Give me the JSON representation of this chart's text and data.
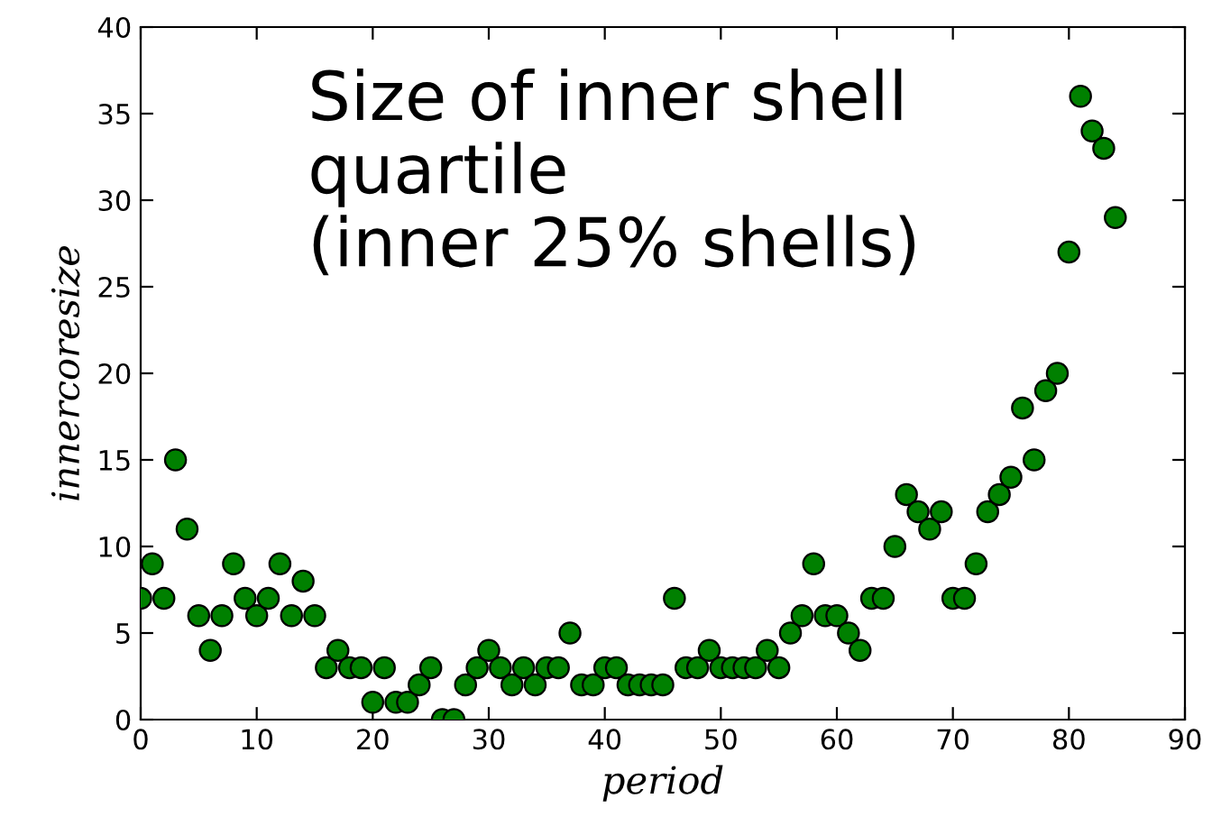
{
  "chart_data": {
    "type": "scatter",
    "xlabel": "period",
    "ylabel": "innercoresize",
    "annotations": [
      "Size of inner shell\nquartile\n(inner 25% shells)"
    ],
    "x": [
      0,
      1,
      2,
      3,
      4,
      5,
      6,
      7,
      8,
      9,
      10,
      11,
      12,
      13,
      14,
      15,
      16,
      17,
      18,
      19,
      20,
      21,
      22,
      23,
      24,
      25,
      26,
      27,
      28,
      29,
      30,
      31,
      32,
      33,
      34,
      35,
      36,
      37,
      38,
      39,
      40,
      41,
      42,
      43,
      44,
      45,
      46,
      47,
      48,
      49,
      50,
      51,
      52,
      53,
      54,
      55,
      56,
      57,
      58,
      59,
      60,
      61,
      62,
      63,
      64,
      65,
      66,
      67,
      68,
      69,
      70,
      71,
      72,
      73,
      74,
      75,
      76,
      77,
      78,
      79,
      80,
      81,
      82,
      83,
      84
    ],
    "series": [
      {
        "color": "#008000",
        "values": [
          7,
          9,
          7,
          15,
          11,
          6,
          4,
          6,
          9,
          7,
          6,
          7,
          9,
          6,
          8,
          6,
          3,
          4,
          3,
          3,
          1,
          3,
          1,
          1,
          2,
          3,
          0,
          0,
          2,
          3,
          4,
          3,
          2,
          3,
          2,
          3,
          3,
          5,
          2,
          2,
          3,
          3,
          2,
          2,
          2,
          2,
          7,
          3,
          3,
          4,
          3,
          3,
          3,
          3,
          4,
          3,
          5,
          6,
          9,
          6,
          6,
          5,
          4,
          7,
          7,
          10,
          13,
          12,
          11,
          12,
          7,
          7,
          9,
          12,
          13,
          14,
          18,
          15,
          19,
          20,
          27,
          36,
          34,
          33,
          29
        ]
      }
    ],
    "xlim": [
      0,
      90
    ],
    "ylim": [
      0,
      40
    ],
    "xticks": [
      0,
      10,
      20,
      30,
      40,
      50,
      60,
      70,
      80,
      90
    ],
    "yticks": [
      0,
      5,
      10,
      15,
      20,
      25,
      30,
      35,
      40
    ],
    "marker": "circle",
    "grid": false,
    "legend": false
  }
}
